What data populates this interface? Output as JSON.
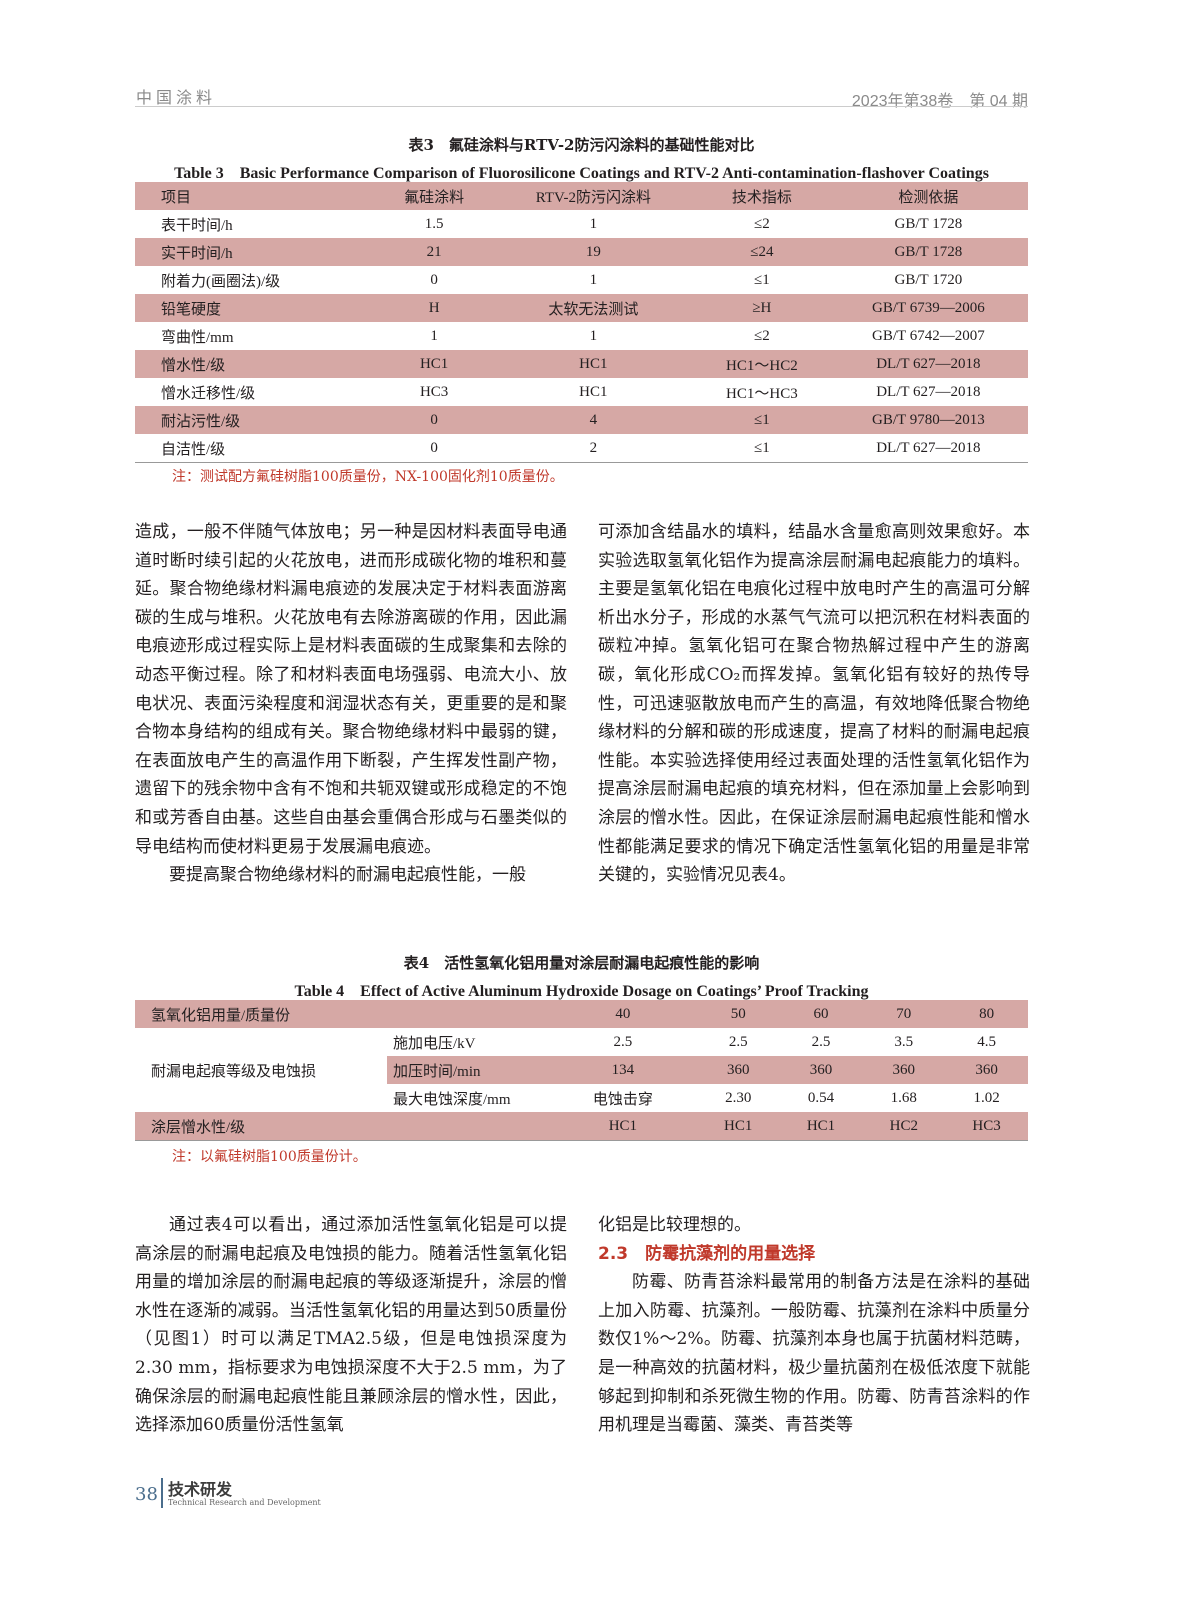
{
  "header": {
    "journal": "中国涂料",
    "issue": "2023年第38卷　第 04 期"
  },
  "table3": {
    "caption_cn": "表3　氟硅涂料与RTV-2防污闪涂料的基础性能对比",
    "caption_en": "Table 3　Basic Performance Comparison of Fluorosilicone Coatings and RTV-2 Anti-contamination-flashover Coatings",
    "headers": [
      "项目",
      "氟硅涂料",
      "RTV-2防污闪涂料",
      "技术指标",
      "检测依据"
    ],
    "rows": [
      [
        "表干时间/h",
        "1.5",
        "1",
        "≤2",
        "GB/T 1728"
      ],
      [
        "实干时间/h",
        "21",
        "19",
        "≤24",
        "GB/T 1728"
      ],
      [
        "附着力(画圈法)/级",
        "0",
        "1",
        "≤1",
        "GB/T 1720"
      ],
      [
        "铅笔硬度",
        "H",
        "太软无法测试",
        "≥H",
        "GB/T 6739—2006"
      ],
      [
        "弯曲性/mm",
        "1",
        "1",
        "≤2",
        "GB/T 6742—2007"
      ],
      [
        "憎水性/级",
        "HC1",
        "HC1",
        "HC1～HC2",
        "DL/T 627—2018"
      ],
      [
        "憎水迁移性/级",
        "HC3",
        "HC1",
        "HC1～HC3",
        "DL/T 627—2018"
      ],
      [
        "耐沾污性/级",
        "0",
        "4",
        "≤1",
        "GB/T 9780—2013"
      ],
      [
        "自洁性/级",
        "0",
        "2",
        "≤1",
        "DL/T 627—2018"
      ]
    ],
    "note": "注：测试配方氟硅树脂100质量份，NX-100固化剂10质量份。"
  },
  "left1": [
    "造成，一般不伴随气体放电；另一种是因材料表面导电通道时断时续引起的火花放电，进而形成碳化物的堆积和蔓延。聚合物绝缘材料漏电痕迹的发展决定于材料表面游离碳的生成与堆积。火花放电有去除游离碳的作用，因此漏电痕迹形成过程实际上是材料表面碳的生成聚集和去除的动态平衡过程。除了和材料表面电场强弱、电流大小、放电状况、表面污染程度和润湿状态有关，更重要的是和聚合物本身结构的组成有关。聚合物绝缘材料中最弱的键，在表面放电产生的高温作用下断裂，产生挥发性副产物，遗留下的残余物中含有不饱和共轭双键或形成稳定的不饱和或芳香自由基。这些自由基会重偶合形成与石墨类似的导电结构而使材料更易于发展漏电痕迹。",
    "要提高聚合物绝缘材料的耐漏电起痕性能，一般"
  ],
  "right1": "可添加含结晶水的填料，结晶水含量愈高则效果愈好。本实验选取氢氧化铝作为提高涂层耐漏电起痕能力的填料。主要是氢氧化铝在电痕化过程中放电时产生的高温可分解析出水分子，形成的水蒸气气流可以把沉积在材料表面的碳粒冲掉。氢氧化铝可在聚合物热解过程中产生的游离碳，氧化形成CO₂而挥发掉。氢氧化铝有较好的热传导性，可迅速驱散放电而产生的高温，有效地降低聚合物绝缘材料的分解和碳的形成速度，提高了材料的耐漏电起痕性能。本实验选择使用经过表面处理的活性氢氧化铝作为提高涂层耐漏电起痕的填充材料，但在添加量上会影响到涂层的憎水性。因此，在保证涂层耐漏电起痕性能和憎水性都能满足要求的情况下确定活性氢氧化铝的用量是非常关键的，实验情况见表4。",
  "table4": {
    "caption_cn": "表4　活性氢氧化铝用量对涂层耐漏电起痕性能的影响",
    "caption_en": "Table 4　Effect of Active Aluminum Hydroxide Dosage on Coatings’ Proof Tracking",
    "dosage_label": "氢氧化铝用量/质量份",
    "dosages": [
      "40",
      "50",
      "60",
      "70",
      "80"
    ],
    "group_label": "耐漏电起痕等级及电蚀损",
    "sub_rows": [
      {
        "label": "施加电压/kV",
        "values": [
          "2.5",
          "2.5",
          "2.5",
          "3.5",
          "4.5"
        ]
      },
      {
        "label": "加压时间/min",
        "values": [
          "134",
          "360",
          "360",
          "360",
          "360"
        ]
      },
      {
        "label": "最大电蚀深度/mm",
        "values": [
          "电蚀击穿",
          "2.30",
          "0.54",
          "1.68",
          "1.02"
        ]
      }
    ],
    "hydro_label": "涂层憎水性/级",
    "hydro": [
      "HC1",
      "HC1",
      "HC1",
      "HC2",
      "HC3"
    ],
    "note": "注：以氟硅树脂100质量份计。"
  },
  "left2": "通过表4可以看出，通过添加活性氢氧化铝是可以提高涂层的耐漏电起痕及电蚀损的能力。随着活性氢氧化铝用量的增加涂层的耐漏电起痕的等级逐渐提升，涂层的憎水性在逐渐的减弱。当活性氢氧化铝的用量达到50质量份（见图1）时可以满足TMA2.5级，但是电蚀损深度为2.30 mm，指标要求为电蚀损深度不大于2.5 mm，为了确保涂层的耐漏电起痕性能且兼顾涂层的憎水性，因此，选择添加60质量份活性氢氧",
  "right2": {
    "cont": "化铝是比较理想的。",
    "section": "2.3　防霉抗藻剂的用量选择",
    "para": "防霉、防青苔涂料最常用的制备方法是在涂料的基础上加入防霉、抗藻剂。一般防霉、抗藻剂在涂料中质量分数仅1%～2%。防霉、抗藻剂本身也属于抗菌材料范畴，是一种高效的抗菌材料，极少量抗菌剂在极低浓度下就能够起到抑制和杀死微生物的作用。防霉、防青苔涂料的作用机理是当霉菌、藻类、青苔类等"
  },
  "footer": {
    "page": "38",
    "section_cn": "技术研发",
    "section_en": "Technical Research and Development"
  },
  "colors": {
    "table_shade": "#d6a8a5",
    "accent_red": "#c0392b",
    "footer_blue": "#4a6d8c"
  }
}
